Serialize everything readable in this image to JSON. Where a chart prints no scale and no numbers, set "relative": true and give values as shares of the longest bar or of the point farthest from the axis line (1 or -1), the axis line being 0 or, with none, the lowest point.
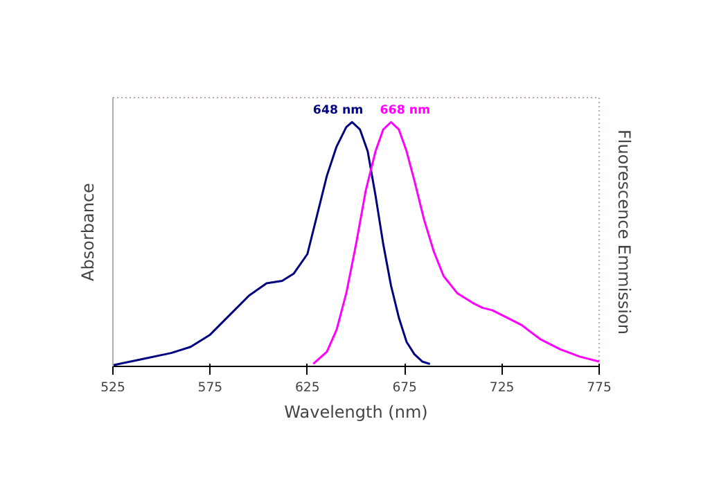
{
  "chart_data": {
    "type": "line",
    "relative": true,
    "xlabel": "Wavelength (nm)",
    "ylabel": "Absorbance",
    "y2label": "Fluorescence Emmission",
    "xlim": [
      525,
      775
    ],
    "xticks": [
      525,
      575,
      625,
      675,
      725,
      775
    ],
    "grid": false,
    "marker": "none",
    "line_style": "solid",
    "annotations": [
      {
        "text": "648 nm",
        "x": 648,
        "y": 1.0
      },
      {
        "text": "668 nm",
        "x": 668,
        "y": 1.0
      }
    ],
    "series": [
      {
        "color": "#000080",
        "x": [
          525,
          540,
          555,
          565,
          575,
          585,
          595,
          604,
          612,
          618,
          625,
          630,
          635,
          640,
          645,
          648,
          652,
          656,
          660,
          664,
          668,
          672,
          676,
          680,
          684,
          688
        ],
        "values": [
          0.005,
          0.03,
          0.055,
          0.08,
          0.13,
          0.21,
          0.29,
          0.34,
          0.35,
          0.38,
          0.46,
          0.62,
          0.78,
          0.9,
          0.98,
          1.0,
          0.97,
          0.88,
          0.7,
          0.5,
          0.33,
          0.2,
          0.1,
          0.05,
          0.02,
          0.01
        ]
      },
      {
        "color": "#ff00ff",
        "x": [
          628,
          635,
          640,
          645,
          650,
          655,
          660,
          664,
          668,
          672,
          676,
          680,
          685,
          690,
          695,
          702,
          710,
          715,
          720,
          725,
          735,
          745,
          755,
          765,
          775
        ],
        "values": [
          0.01,
          0.06,
          0.15,
          0.3,
          0.5,
          0.72,
          0.88,
          0.97,
          1.0,
          0.97,
          0.88,
          0.76,
          0.6,
          0.47,
          0.37,
          0.3,
          0.26,
          0.24,
          0.23,
          0.21,
          0.17,
          0.11,
          0.07,
          0.04,
          0.02
        ]
      }
    ]
  }
}
